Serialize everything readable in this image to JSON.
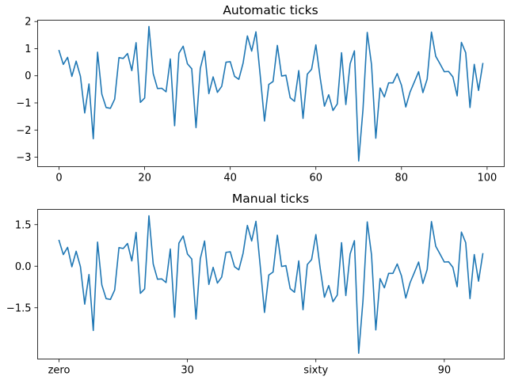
{
  "colors": {
    "series": "#1f77b4",
    "axes": "#000000",
    "background": "#ffffff"
  },
  "chart_data": [
    {
      "type": "line",
      "title": "Automatic ticks",
      "xlabel": "",
      "ylabel": "",
      "xlim": [
        -5,
        104
      ],
      "ylim": [
        -3.35,
        2.05
      ],
      "xticks": [
        0,
        20,
        40,
        60,
        80,
        100
      ],
      "xtick_labels": [
        "0",
        "20",
        "40",
        "60",
        "80",
        "100"
      ],
      "yticks": [
        2,
        1,
        0,
        -1,
        -2,
        -3
      ],
      "ytick_labels": [
        "2",
        "1",
        "0",
        "−1",
        "−2",
        "−3"
      ],
      "grid": false,
      "series_ref": "values"
    },
    {
      "type": "line",
      "title": "Manual ticks",
      "xlabel": "",
      "ylabel": "",
      "xlim": [
        -5,
        104
      ],
      "ylim": [
        -3.35,
        2.05
      ],
      "xticks": [
        0,
        30,
        60,
        90
      ],
      "xtick_labels": [
        "zero",
        "30",
        "sixty",
        "90"
      ],
      "yticks": [
        1.5,
        0.0,
        -1.5
      ],
      "ytick_labels": [
        "1.5",
        "0.0",
        "−1.5"
      ],
      "grid": false,
      "series_ref": "values"
    }
  ],
  "values": [
    0.93,
    0.42,
    0.68,
    -0.02,
    0.54,
    -0.02,
    -1.37,
    -0.3,
    -2.32,
    0.87,
    -0.68,
    -1.17,
    -1.2,
    -0.86,
    0.67,
    0.64,
    0.82,
    0.19,
    1.22,
    -0.98,
    -0.82,
    1.82,
    0.08,
    -0.47,
    -0.46,
    -0.59,
    0.62,
    -1.84,
    0.83,
    1.09,
    0.44,
    0.26,
    -1.91,
    0.27,
    0.91,
    -0.66,
    -0.04,
    -0.61,
    -0.39,
    0.5,
    0.52,
    -0.02,
    -0.13,
    0.47,
    1.47,
    0.91,
    1.62,
    0.01,
    -1.67,
    -0.32,
    -0.21,
    1.12,
    -0.01,
    0.02,
    -0.81,
    -0.94,
    0.19,
    -1.57,
    0.06,
    0.24,
    1.14,
    -0.07,
    -1.12,
    -0.7,
    -1.28,
    -1.04,
    0.85,
    -1.06,
    0.44,
    0.92,
    -3.14,
    -1.25,
    1.6,
    0.41,
    -2.3,
    -0.45,
    -0.78,
    -0.26,
    -0.26,
    0.08,
    -0.35,
    -1.15,
    -0.6,
    -0.23,
    0.15,
    -0.62,
    -0.12,
    1.61,
    0.72,
    0.44,
    0.15,
    0.16,
    -0.04,
    -0.74,
    1.23,
    0.85,
    -1.17,
    0.42,
    -0.54,
    0.45
  ]
}
